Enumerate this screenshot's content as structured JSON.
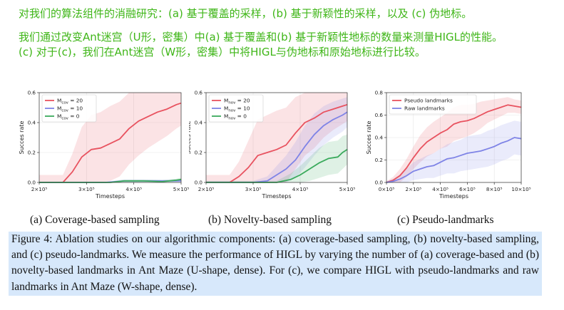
{
  "annotation": {
    "line1": "对我们的算法组件的消融研究：(a) 基于覆盖的采样，(b) 基于新颖性的采样，以及 (c) 伪地标。",
    "line2": "我们通过改变Ant迷宫（U形，密集）中(a) 基于覆盖和(b) 基于新颖性地标的数量来测量HIGL的性能。",
    "line3": "(c) 对于(c)，我们在Ant迷宫（W形，密集）中将HIGL与伪地标和原始地标进行比较。"
  },
  "subcaptions": [
    "(a) Coverage-based sampling",
    "(b) Novelty-based sampling",
    "(c) Pseudo-landmarks"
  ],
  "caption": "Figure 4: Ablation studies on our algorithmic components: (a) coverage-based sampling, (b) novelty-based sampling, and (c) pseudo-landmarks. We measure the performance of HIGL by varying the number of (a) coverage-based and (b) novelty-based landmarks in Ant Maze (U-shape, dense). For (c), we compare HIGL with pseudo-landmarks and raw landmarks in Ant Maze (W-shape, dense).",
  "colors": {
    "red": "#e8525f",
    "blue": "#7e83e6",
    "green": "#3aaa5c",
    "annotation": "#3fb618",
    "caption_bg": "#d7e8fb"
  },
  "chart_data": [
    {
      "type": "line",
      "xlabel": "Timesteps",
      "ylabel": "Succes rate",
      "xlim": [
        200000,
        500000
      ],
      "ylim": [
        0,
        0.6
      ],
      "xticks": [
        200000,
        300000,
        400000,
        500000
      ],
      "xtick_labels": [
        "2×10⁵",
        "3×10⁵",
        "4×10⁵",
        "5×10⁵"
      ],
      "yticks": [
        0,
        0.2,
        0.4,
        0.6
      ],
      "ytick_labels": [
        "0.0",
        "0.2",
        "0.4",
        "0.6"
      ],
      "legend": "top-left",
      "series": [
        {
          "name": "M",
          "sub": "cov",
          "suffix": " = 20",
          "color": "red",
          "x": [
            200000,
            250000,
            270000,
            290000,
            310000,
            330000,
            350000,
            370000,
            390000,
            410000,
            430000,
            450000,
            470000,
            490000,
            500000
          ],
          "y": [
            0.0,
            0.0,
            0.07,
            0.17,
            0.22,
            0.23,
            0.26,
            0.29,
            0.36,
            0.41,
            0.44,
            0.47,
            0.49,
            0.52,
            0.53
          ],
          "band": [
            0.05,
            0.05,
            0.12,
            0.2,
            0.23,
            0.24,
            0.25,
            0.25,
            0.24,
            0.23,
            0.21,
            0.2,
            0.18,
            0.16,
            0.15
          ]
        },
        {
          "name": "M",
          "sub": "cov",
          "suffix": " = 10",
          "color": "blue",
          "x": [
            200000,
            300000,
            340000,
            380000,
            420000,
            460000,
            500000
          ],
          "y": [
            0.0,
            0.0,
            0.0,
            0.01,
            0.01,
            0.01,
            0.01
          ],
          "band": [
            0.005,
            0.005,
            0.005,
            0.01,
            0.01,
            0.01,
            0.01
          ]
        },
        {
          "name": "M",
          "sub": "cov",
          "suffix": " = 0",
          "color": "green",
          "x": [
            200000,
            300000,
            350000,
            380000,
            420000,
            460000,
            490000,
            500000
          ],
          "y": [
            0.0,
            0.0,
            0.0,
            0.01,
            0.01,
            0.005,
            0.015,
            0.02
          ],
          "band": [
            0.005,
            0.005,
            0.005,
            0.01,
            0.01,
            0.01,
            0.01,
            0.01
          ]
        }
      ]
    },
    {
      "type": "line",
      "xlabel": "Timesteps",
      "ylabel": "Succes rate",
      "xlim": [
        200000,
        500000
      ],
      "ylim": [
        0,
        0.6
      ],
      "xticks": [
        200000,
        300000,
        400000,
        500000
      ],
      "xtick_labels": [
        "2×10⁵",
        "3×10⁵",
        "4×10⁵",
        "5×10⁵"
      ],
      "yticks": [
        0,
        0.2,
        0.4,
        0.6
      ],
      "ytick_labels": [
        "0.0",
        "0.2",
        "0.4",
        "0.6"
      ],
      "legend": "top-left",
      "series": [
        {
          "name": "M",
          "sub": "nov",
          "suffix": " = 20",
          "color": "red",
          "x": [
            200000,
            250000,
            270000,
            290000,
            310000,
            330000,
            350000,
            370000,
            390000,
            410000,
            430000,
            450000,
            470000,
            490000,
            500000
          ],
          "y": [
            0.0,
            0.0,
            0.04,
            0.1,
            0.18,
            0.2,
            0.22,
            0.25,
            0.33,
            0.4,
            0.43,
            0.47,
            0.49,
            0.51,
            0.52
          ],
          "band": [
            0.05,
            0.05,
            0.1,
            0.18,
            0.24,
            0.25,
            0.26,
            0.25,
            0.24,
            0.22,
            0.2,
            0.17,
            0.14,
            0.12,
            0.11
          ]
        },
        {
          "name": "M",
          "sub": "nov",
          "suffix": " = 10",
          "color": "blue",
          "x": [
            200000,
            300000,
            330000,
            350000,
            370000,
            390000,
            410000,
            430000,
            450000,
            470000,
            490000,
            500000
          ],
          "y": [
            0.0,
            0.0,
            0.01,
            0.05,
            0.09,
            0.15,
            0.24,
            0.32,
            0.38,
            0.42,
            0.45,
            0.47
          ],
          "band": [
            0.01,
            0.01,
            0.03,
            0.06,
            0.09,
            0.12,
            0.14,
            0.14,
            0.13,
            0.12,
            0.11,
            0.1
          ]
        },
        {
          "name": "M",
          "sub": "nov",
          "suffix": " = 0",
          "color": "green",
          "x": [
            200000,
            350000,
            380000,
            400000,
            420000,
            440000,
            460000,
            480000,
            490000,
            500000
          ],
          "y": [
            0.0,
            0.0,
            0.02,
            0.05,
            0.09,
            0.13,
            0.16,
            0.17,
            0.2,
            0.22
          ],
          "band": [
            0.01,
            0.01,
            0.04,
            0.06,
            0.08,
            0.1,
            0.11,
            0.11,
            0.11,
            0.1
          ]
        }
      ]
    },
    {
      "type": "line",
      "xlabel": "Timesteps",
      "ylabel": "Succes rate",
      "xlim": [
        0,
        1000000
      ],
      "ylim": [
        0,
        0.8
      ],
      "xticks": [
        0,
        200000,
        400000,
        600000,
        800000,
        1000000
      ],
      "xtick_labels": [
        "0×10⁵",
        "2×10⁵",
        "4×10⁵",
        "6×10⁵",
        "8×10⁵",
        "10×10⁵"
      ],
      "yticks": [
        0,
        0.2,
        0.4,
        0.6,
        0.8
      ],
      "ytick_labels": [
        "0.0",
        "0.2",
        "0.4",
        "0.6",
        "0.8"
      ],
      "legend": "top-left",
      "series": [
        {
          "name": "Pseudo landmarks",
          "color": "red",
          "x": [
            0,
            50000,
            100000,
            150000,
            200000,
            250000,
            300000,
            350000,
            400000,
            450000,
            500000,
            550000,
            600000,
            650000,
            700000,
            750000,
            800000,
            850000,
            900000,
            950000,
            1000000
          ],
          "y": [
            0.0,
            0.02,
            0.06,
            0.13,
            0.22,
            0.3,
            0.36,
            0.4,
            0.44,
            0.47,
            0.52,
            0.54,
            0.55,
            0.57,
            0.6,
            0.63,
            0.65,
            0.67,
            0.69,
            0.68,
            0.67
          ],
          "band": [
            0.01,
            0.03,
            0.06,
            0.08,
            0.1,
            0.12,
            0.13,
            0.14,
            0.14,
            0.15,
            0.15,
            0.15,
            0.14,
            0.13,
            0.12,
            0.1,
            0.09,
            0.08,
            0.07,
            0.06,
            0.06
          ]
        },
        {
          "name": "Raw landmarks",
          "color": "blue",
          "x": [
            0,
            50000,
            100000,
            150000,
            200000,
            250000,
            300000,
            350000,
            400000,
            450000,
            500000,
            550000,
            600000,
            650000,
            700000,
            750000,
            800000,
            850000,
            900000,
            950000,
            1000000
          ],
          "y": [
            0.0,
            0.01,
            0.03,
            0.06,
            0.1,
            0.12,
            0.14,
            0.15,
            0.18,
            0.21,
            0.22,
            0.24,
            0.26,
            0.27,
            0.28,
            0.3,
            0.32,
            0.35,
            0.37,
            0.4,
            0.39
          ],
          "band": [
            0.01,
            0.02,
            0.04,
            0.06,
            0.08,
            0.09,
            0.1,
            0.11,
            0.12,
            0.13,
            0.14,
            0.14,
            0.15,
            0.15,
            0.15,
            0.16,
            0.16,
            0.16,
            0.16,
            0.15,
            0.15
          ]
        }
      ]
    }
  ]
}
